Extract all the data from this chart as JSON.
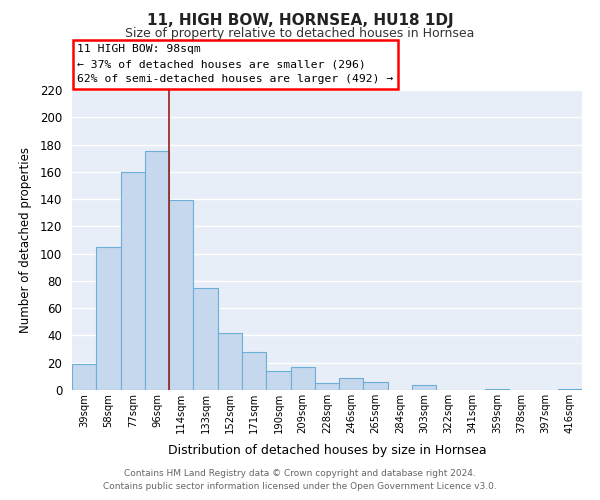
{
  "title": "11, HIGH BOW, HORNSEA, HU18 1DJ",
  "subtitle": "Size of property relative to detached houses in Hornsea",
  "xlabel": "Distribution of detached houses by size in Hornsea",
  "ylabel": "Number of detached properties",
  "bar_labels": [
    "39sqm",
    "58sqm",
    "77sqm",
    "96sqm",
    "114sqm",
    "133sqm",
    "152sqm",
    "171sqm",
    "190sqm",
    "209sqm",
    "228sqm",
    "246sqm",
    "265sqm",
    "284sqm",
    "303sqm",
    "322sqm",
    "341sqm",
    "359sqm",
    "378sqm",
    "397sqm",
    "416sqm"
  ],
  "bar_values": [
    19,
    105,
    160,
    175,
    139,
    75,
    42,
    28,
    14,
    17,
    5,
    9,
    6,
    0,
    4,
    0,
    0,
    1,
    0,
    0,
    1
  ],
  "bar_color": "#c5d8ee",
  "bar_edge_color": "#6baed6",
  "ylim": [
    0,
    220
  ],
  "yticks": [
    0,
    20,
    40,
    60,
    80,
    100,
    120,
    140,
    160,
    180,
    200,
    220
  ],
  "annotation_box_text": "11 HIGH BOW: 98sqm\n← 37% of detached houses are smaller (296)\n62% of semi-detached houses are larger (492) →",
  "vline_x": 3.5,
  "vline_color": "#9b1c1c",
  "footer_line1": "Contains HM Land Registry data © Crown copyright and database right 2024.",
  "footer_line2": "Contains public sector information licensed under the Open Government Licence v3.0.",
  "plot_bg_color": "#e8eef8",
  "grid_color": "#ffffff",
  "fig_bg_color": "#ffffff"
}
